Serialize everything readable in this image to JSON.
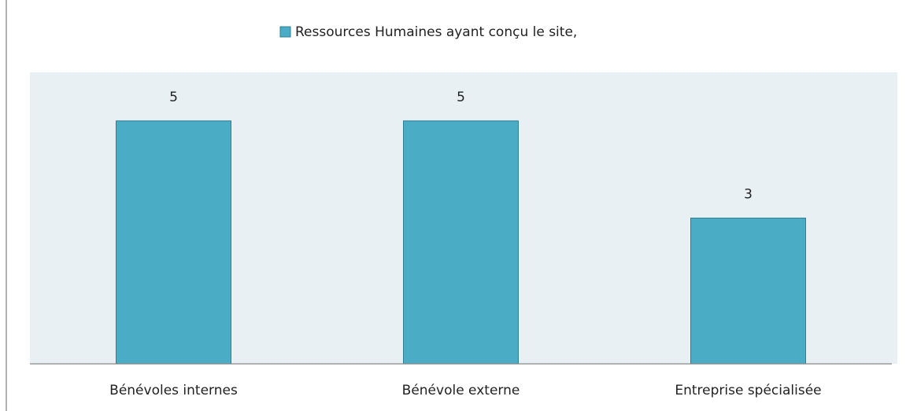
{
  "chart_data": {
    "type": "bar",
    "categories": [
      "Bénévoles internes",
      "Bénévole externe",
      "Entreprise spécialisée"
    ],
    "series": [
      {
        "name": "Ressources Humaines ayant conçu le site,",
        "color": "#4bacc6",
        "values": [
          5,
          5,
          3
        ]
      }
    ],
    "ylim": [
      0,
      6
    ],
    "legend": "top"
  }
}
